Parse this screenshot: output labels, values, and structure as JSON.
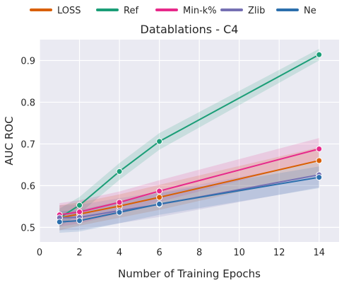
{
  "chart_data": {
    "type": "line",
    "title": "Datablations - C4",
    "xlabel": "Number of Training Epochs",
    "ylabel": "AUC ROC",
    "xlim": [
      0,
      15
    ],
    "ylim": [
      0.465,
      0.95
    ],
    "xticks": [
      0,
      2,
      4,
      6,
      8,
      10,
      12,
      14
    ],
    "yticks": [
      0.5,
      0.6,
      0.7,
      0.8,
      0.9
    ],
    "grid": true,
    "legend_position": "top",
    "x": [
      1,
      2,
      4,
      6,
      14
    ],
    "series": [
      {
        "name": "LOSS",
        "color": "#d95f02",
        "values": [
          0.523,
          0.532,
          0.551,
          0.572,
          0.66
        ],
        "band": [
          0.03,
          0.028,
          0.028,
          0.03,
          0.032
        ]
      },
      {
        "name": "Ref",
        "color": "#1b9e77",
        "values": [
          0.523,
          0.553,
          0.634,
          0.706,
          0.914
        ],
        "band": [
          0.022,
          0.02,
          0.02,
          0.02,
          0.014
        ]
      },
      {
        "name": "Min-k%",
        "color": "#e7298a",
        "values": [
          0.53,
          0.537,
          0.56,
          0.587,
          0.688
        ],
        "band": [
          0.028,
          0.028,
          0.026,
          0.026,
          0.026
        ]
      },
      {
        "name": "Zlib",
        "color": "#7570b3",
        "values": [
          0.523,
          0.524,
          0.54,
          0.555,
          0.626
        ],
        "band": [
          0.03,
          0.03,
          0.03,
          0.03,
          0.03
        ]
      },
      {
        "name": "Ne",
        "color": "#2c6fad",
        "values": [
          0.513,
          0.516,
          0.536,
          0.556,
          0.62
        ],
        "band": [
          0.026,
          0.026,
          0.026,
          0.026,
          0.026
        ]
      }
    ]
  }
}
